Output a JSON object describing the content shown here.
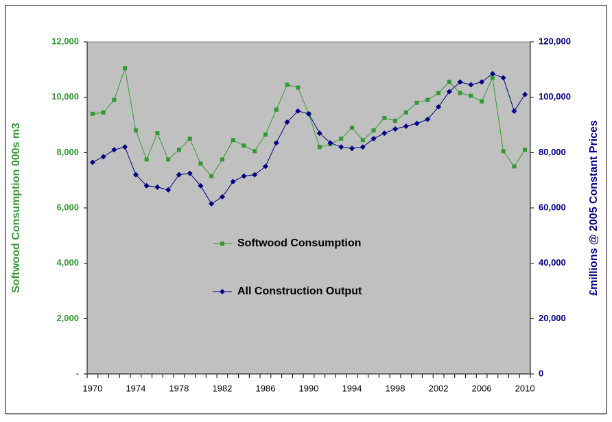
{
  "chart_data": {
    "type": "line",
    "categories": [
      "1970",
      null,
      null,
      null,
      "1974",
      null,
      null,
      null,
      "1978",
      null,
      null,
      null,
      "1982",
      null,
      null,
      null,
      "1986",
      null,
      null,
      null,
      "1990",
      null,
      null,
      null,
      "1994",
      null,
      null,
      null,
      "1998",
      null,
      null,
      null,
      "2002",
      null,
      null,
      null,
      "2006",
      null,
      null,
      null,
      "2010"
    ],
    "y_label": "Softwood Consumption 000s m3",
    "y2_label": "£millions  @ 2005 Constant Prices",
    "ylim": [
      0,
      12000
    ],
    "yticks": [
      {
        "value": 0,
        "label": "-"
      },
      {
        "value": 2000,
        "label": "2,000"
      },
      {
        "value": 4000,
        "label": "4,000"
      },
      {
        "value": 6000,
        "label": "6,000"
      },
      {
        "value": 8000,
        "label": "8,000"
      },
      {
        "value": 10000,
        "label": "10,000"
      },
      {
        "value": 12000,
        "label": "12,000"
      }
    ],
    "y2lim": [
      0,
      120000
    ],
    "y2ticks": [
      0,
      {
        "value": 20000,
        "label": "20,000"
      },
      {
        "value": 40000,
        "label": "40,000"
      },
      {
        "value": 60000,
        "label": "60,000"
      },
      {
        "value": 80000,
        "label": "80,000"
      },
      {
        "value": 100000,
        "label": "100,000"
      },
      {
        "value": 120000,
        "label": "120,000"
      }
    ],
    "series": [
      {
        "name": "Softwood Consumption",
        "color": "#339933",
        "marker": "square",
        "values": [
          9400,
          9450,
          9900,
          11050,
          8800,
          7750,
          8700,
          7750,
          8100,
          8500,
          7600,
          7150,
          7750,
          8450,
          8250,
          8050,
          8650,
          9550,
          10450,
          10350,
          9400,
          8200,
          8300,
          8500,
          8900,
          8450,
          8800,
          9250,
          9150,
          9450,
          9800,
          9900,
          10150,
          10550,
          10150,
          10050,
          9850,
          10700,
          8050,
          7500,
          8100
        ]
      },
      {
        "name": "All Construction Output",
        "color": "#000080",
        "marker": "diamond",
        "axis": "y2",
        "values": [
          76500,
          78500,
          81000,
          82000,
          72000,
          68000,
          67500,
          66500,
          72000,
          72500,
          68000,
          61500,
          64000,
          69500,
          71500,
          72000,
          75000,
          83500,
          91000,
          95000,
          94000,
          87000,
          83500,
          82000,
          81500,
          82000,
          85000,
          87000,
          88500,
          89500,
          90500,
          92000,
          96500,
          102000,
          105500,
          104500,
          105500,
          108500,
          107000,
          95000,
          101000
        ]
      }
    ]
  }
}
